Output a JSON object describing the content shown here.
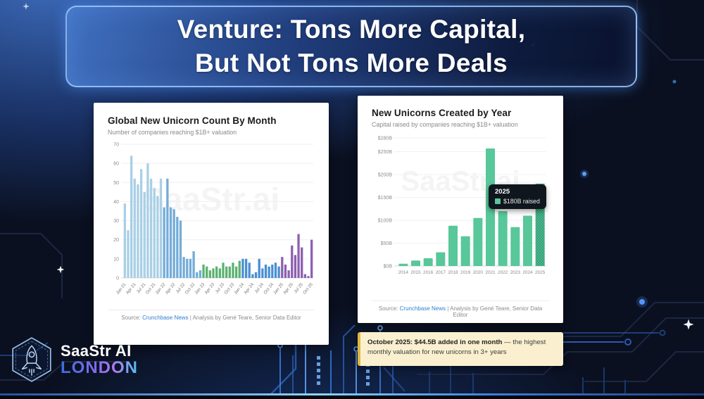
{
  "slide": {
    "title_line1": "Venture: Tons More Capital,",
    "title_line2": "But Not Tons More Deals"
  },
  "logo": {
    "name": "SaaStr AI",
    "location": "LONDON",
    "icon": "rocket-hexagon-icon"
  },
  "left_card": {
    "title": "Global New Unicorn Count By Month",
    "subtitle": "Number of companies reaching $1B+ valuation",
    "watermark": "SaaStr.ai",
    "source_prefix": "Source:",
    "source_link": "Crunchbase News",
    "source_suffix": "| Analysis by Gené Teare, Senior Data Editor"
  },
  "right_card": {
    "title": "New Unicorns Created by Year",
    "subtitle": "Capital raised by companies reaching $1B+ valuation",
    "watermark": "SaaStr.ai",
    "source_prefix": "Source:",
    "source_link": "Crunchbase News",
    "source_suffix": "| Analysis by Gené Teare, Senior Data Editor",
    "tooltip": {
      "year": "2025",
      "label": "$180B raised"
    }
  },
  "callout": {
    "bold": "October 2025: $44.5B added in one month",
    "rest": " — the highest monthly valuation for new unicorns in 3+ years"
  },
  "chart_data": [
    {
      "id": "monthly",
      "type": "bar",
      "title": "Global New Unicorn Count By Month",
      "xlabel": "",
      "ylabel": "",
      "ylim": [
        0,
        70
      ],
      "yticks": [
        0,
        10,
        20,
        30,
        40,
        50,
        60,
        70
      ],
      "grid": true,
      "tick_every": 3,
      "categories": [
        "Jan 21",
        "Feb 21",
        "Mar 21",
        "Apr 21",
        "May 21",
        "Jun 21",
        "Jul 21",
        "Aug 21",
        "Sep 21",
        "Oct 21",
        "Nov 21",
        "Dec 21",
        "Jan 22",
        "Feb 22",
        "Mar 22",
        "Apr 22",
        "May 22",
        "Jun 22",
        "Jul 22",
        "Aug 22",
        "Sep 22",
        "Oct 22",
        "Nov 22",
        "Dec 22",
        "Jan 23",
        "Feb 23",
        "Mar 23",
        "Apr 23",
        "May 23",
        "Jun 23",
        "Jul 23",
        "Aug 23",
        "Sep 23",
        "Oct 23",
        "Nov 23",
        "Dec 23",
        "Jan 24",
        "Feb 24",
        "Mar 24",
        "Apr 24",
        "May 24",
        "Jun 24",
        "Jul 24",
        "Aug 24",
        "Sep 24",
        "Oct 24",
        "Nov 24",
        "Dec 24",
        "Jan 25",
        "Feb 25",
        "Mar 25",
        "Apr 25",
        "May 25",
        "Jun 25",
        "Jul 25",
        "Aug 25",
        "Sep 25",
        "Oct 25"
      ],
      "values": [
        39,
        25,
        64,
        52,
        49,
        57,
        45,
        60,
        52,
        47,
        43,
        52,
        37,
        52,
        37,
        36,
        32,
        30,
        11,
        10,
        10,
        14,
        3,
        4,
        7,
        6,
        4,
        5,
        6,
        5,
        8,
        6,
        6,
        8,
        6,
        9,
        10,
        10,
        8,
        2,
        3,
        10,
        5,
        7,
        6,
        7,
        8,
        6,
        11,
        7,
        4,
        17,
        12,
        23,
        16,
        2,
        1,
        20
      ],
      "colors": {
        "2021": "#a9cfe6",
        "2022": "#74acd8",
        "2023": "#5bb271",
        "2024": "#4a8fd3",
        "2025": "#8d5fb0"
      }
    },
    {
      "id": "yearly",
      "type": "bar",
      "title": "New Unicorns Created by Year",
      "xlabel": "",
      "ylabel": "",
      "ylim": [
        0,
        280
      ],
      "yticks": [
        "$0B",
        "$50B",
        "$100B",
        "$150B",
        "$200B",
        "$250B",
        "$280B"
      ],
      "ytick_values": [
        0,
        50,
        100,
        150,
        200,
        250,
        280
      ],
      "grid": true,
      "categories": [
        "2014",
        "2015",
        "2016",
        "2017",
        "2018",
        "2019",
        "2020",
        "2021",
        "2022",
        "2023",
        "2024",
        "2025"
      ],
      "values": [
        5,
        12,
        17,
        30,
        88,
        65,
        105,
        257,
        120,
        85,
        110,
        180
      ],
      "color": "#58c79a",
      "highlight": "2025",
      "highlight_color": "#47b78c"
    }
  ]
}
